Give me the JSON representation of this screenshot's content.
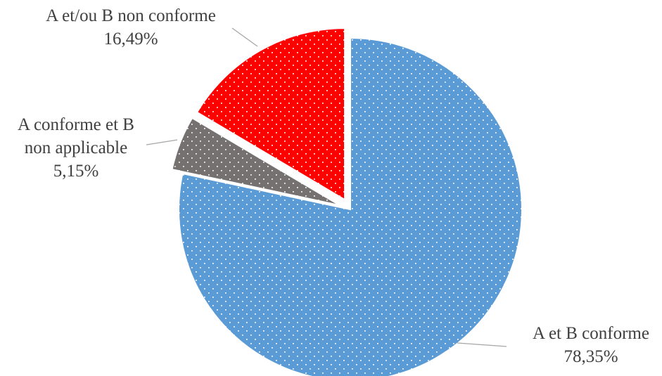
{
  "chart_data": {
    "type": "pie",
    "start_angle_deg": 0,
    "direction": "clockwise",
    "legend": "none",
    "slices": [
      {
        "key": "a-et-b-conforme",
        "label": "A et B conforme",
        "value": 78.35,
        "value_label": "78,35%",
        "color": "#5b9bd5",
        "pattern": "dotted-white",
        "exploded": false
      },
      {
        "key": "a-conforme-et-b-non-applicable",
        "label": "A conforme et B non applicable",
        "label_lines": [
          "A conforme et B",
          "non applicable"
        ],
        "value": 5.15,
        "value_label": "5,15%",
        "color": "#767171",
        "pattern": "dotted-white",
        "exploded": true
      },
      {
        "key": "a-et-ou-b-non-conforme",
        "label": "A et/ou B non conforme",
        "value": 16.49,
        "value_label": "16,49%",
        "color": "#ff0000",
        "pattern": "dotted-white",
        "exploded": true
      }
    ]
  }
}
